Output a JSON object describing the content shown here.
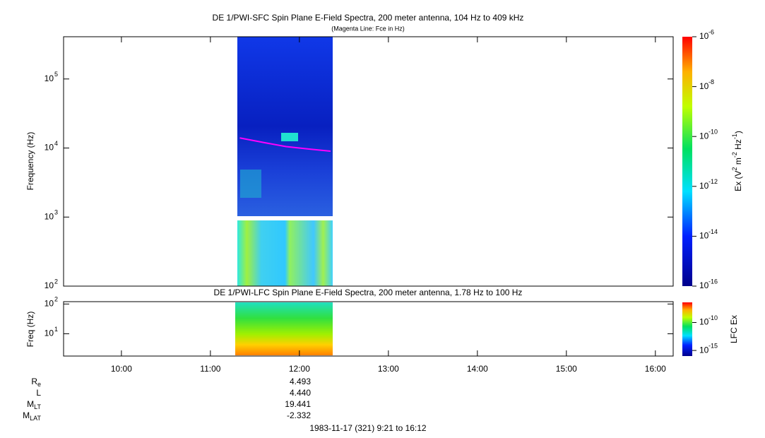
{
  "chart_data": [
    {
      "type": "spectrogram",
      "title": "DE 1/PWI-SFC  Spin Plane E-Field Spectra, 200 meter antenna, 104 Hz to 409 kHz",
      "subtitle": "(Magenta Line: Fce in Hz)",
      "y_label": "Frequency (Hz)",
      "ylim": [
        100,
        409000
      ],
      "log_y": true,
      "yticks": [
        {
          "value": 100,
          "label": "10",
          "exp": "2"
        },
        {
          "value": 1000,
          "label": "10",
          "exp": "3"
        },
        {
          "value": 10000,
          "label": "10",
          "exp": "4"
        },
        {
          "value": 100000,
          "label": "10",
          "exp": "5"
        }
      ],
      "xlim": [
        9.35,
        16.2
      ],
      "series": [
        {
          "name": "Fce",
          "color": "#ff00ff",
          "x": [
            11.33,
            11.6,
            11.85,
            12.1,
            12.35
          ],
          "values": [
            14000,
            12000,
            10500,
            9700,
            9000
          ]
        }
      ],
      "colorbar": {
        "label": "Ex (V",
        "label_exp": "2",
        "label_mid": " m",
        "label_exp2": "-2",
        "label_mid2": " Hz",
        "label_exp3": "-1",
        "label_end": ")",
        "clim": [
          1e-16,
          1e-06
        ],
        "ticks": [
          {
            "value": 1e-06,
            "label": "10",
            "exp": "-6"
          },
          {
            "value": 1e-08,
            "label": "10",
            "exp": "-8"
          },
          {
            "value": 1e-10,
            "label": "10",
            "exp": "-10"
          },
          {
            "value": 1e-12,
            "label": "10",
            "exp": "-12"
          },
          {
            "value": 1e-14,
            "label": "10",
            "exp": "-14"
          },
          {
            "value": 1e-16,
            "label": "10",
            "exp": "-16"
          }
        ]
      }
    },
    {
      "type": "spectrogram",
      "title": "DE 1/PWI-LFC  Spin Plane E-Field Spectra, 200 meter antenna, 1.78 Hz to 100 Hz",
      "y_label": "Freq (Hz)",
      "ylim": [
        1.78,
        120
      ],
      "log_y": true,
      "yticks": [
        {
          "value": 10,
          "label": "10",
          "exp": "1"
        },
        {
          "value": 100,
          "label": "10",
          "exp": "2"
        }
      ],
      "xlim": [
        9.35,
        16.2
      ],
      "xticks": [
        {
          "value": 10,
          "label": "10:00"
        },
        {
          "value": 11,
          "label": "11:00"
        },
        {
          "value": 12,
          "label": "12:00"
        },
        {
          "value": 13,
          "label": "13:00"
        },
        {
          "value": 14,
          "label": "14:00"
        },
        {
          "value": 15,
          "label": "15:00"
        },
        {
          "value": 16,
          "label": "16:00"
        }
      ],
      "colorbar": {
        "label": "LFC Ex",
        "clim": [
          1e-16,
          4e-07
        ],
        "ticks": [
          {
            "value": 1e-10,
            "label": "10",
            "exp": "-10"
          },
          {
            "value": 1e-15,
            "label": "10",
            "exp": "-15"
          }
        ]
      }
    }
  ],
  "ephemeris": [
    {
      "label": "R",
      "sub": "e",
      "value": "4.493"
    },
    {
      "label": "L",
      "value": "4.440"
    },
    {
      "label": "M",
      "sub": "LT",
      "value": "19.441"
    },
    {
      "label": "M",
      "sub": "LAT",
      "value": "-2.332"
    }
  ],
  "footer": "1983-11-17 (321) 9:21 to 16:12"
}
